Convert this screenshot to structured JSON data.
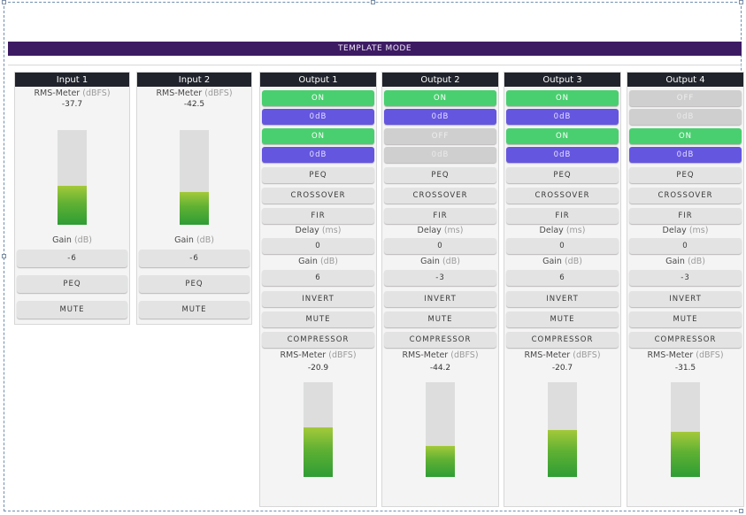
{
  "banner": "TEMPLATE MODE",
  "inputs": [
    {
      "title": "Input 1",
      "meter_label": "RMS-Meter",
      "meter_unit": "(dBFS)",
      "meter_value": "-37.7",
      "level": 0.41,
      "gain_label": "Gain",
      "gain_unit": "(dB)",
      "gain_value": "-6",
      "peq": "PEQ",
      "mute": "MUTE"
    },
    {
      "title": "Input 2",
      "meter_label": "RMS-Meter",
      "meter_unit": "(dBFS)",
      "meter_value": "-42.5",
      "level": 0.35,
      "gain_label": "Gain",
      "gain_unit": "(dB)",
      "gain_value": "-6",
      "peq": "PEQ",
      "mute": "MUTE"
    }
  ],
  "outputs": [
    {
      "title": "Output 1",
      "t1": "ON",
      "t1s": "on",
      "t2": "0dB",
      "t2s": "db",
      "t3": "ON",
      "t3s": "on",
      "t4": "0dB",
      "t4s": "db",
      "peq": "PEQ",
      "crossover": "CROSSOVER",
      "fir": "FIR",
      "delay_label": "Delay",
      "delay_unit": "(ms)",
      "delay_value": "0",
      "gain_label": "Gain",
      "gain_unit": "(dB)",
      "gain_value": "6",
      "invert": "INVERT",
      "mute": "MUTE",
      "compressor": "COMPRESSOR",
      "meter_label": "RMS-Meter",
      "meter_unit": "(dBFS)",
      "meter_value": "-20.9",
      "level": 0.52
    },
    {
      "title": "Output 2",
      "t1": "ON",
      "t1s": "on",
      "t2": "0dB",
      "t2s": "db",
      "t3": "OFF",
      "t3s": "off",
      "t4": "0dB",
      "t4s": "offdb",
      "peq": "PEQ",
      "crossover": "CROSSOVER",
      "fir": "FIR",
      "delay_label": "Delay",
      "delay_unit": "(ms)",
      "delay_value": "0",
      "gain_label": "Gain",
      "gain_unit": "(dB)",
      "gain_value": "-3",
      "invert": "INVERT",
      "mute": "MUTE",
      "compressor": "COMPRESSOR",
      "meter_label": "RMS-Meter",
      "meter_unit": "(dBFS)",
      "meter_value": "-44.2",
      "level": 0.33
    },
    {
      "title": "Output 3",
      "t1": "ON",
      "t1s": "on",
      "t2": "0dB",
      "t2s": "db",
      "t3": "ON",
      "t3s": "on",
      "t4": "0dB",
      "t4s": "db",
      "peq": "PEQ",
      "crossover": "CROSSOVER",
      "fir": "FIR",
      "delay_label": "Delay",
      "delay_unit": "(ms)",
      "delay_value": "0",
      "gain_label": "Gain",
      "gain_unit": "(dB)",
      "gain_value": "6",
      "invert": "INVERT",
      "mute": "MUTE",
      "compressor": "COMPRESSOR",
      "meter_label": "RMS-Meter",
      "meter_unit": "(dBFS)",
      "meter_value": "-20.7",
      "level": 0.5
    },
    {
      "title": "Output 4",
      "t1": "OFF",
      "t1s": "off",
      "t2": "0dB",
      "t2s": "offdb",
      "t3": "ON",
      "t3s": "on",
      "t4": "0dB",
      "t4s": "db",
      "peq": "PEQ",
      "crossover": "CROSSOVER",
      "fir": "FIR",
      "delay_label": "Delay",
      "delay_unit": "(ms)",
      "delay_value": "0",
      "gain_label": "Gain",
      "gain_unit": "(dB)",
      "gain_value": "-3",
      "invert": "INVERT",
      "mute": "MUTE",
      "compressor": "COMPRESSOR",
      "meter_label": "RMS-Meter",
      "meter_unit": "(dBFS)",
      "meter_value": "-31.5",
      "level": 0.48
    }
  ]
}
